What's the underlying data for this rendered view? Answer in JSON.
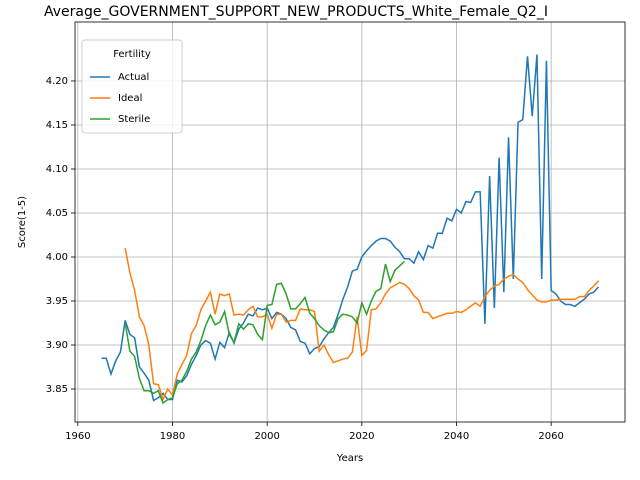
{
  "chart_data": {
    "type": "line",
    "title": "Average_GOVERNMENT_SUPPORT_NEW_PRODUCTS_White_Female_Q2_I",
    "x_label": "Years",
    "y_label": "Score(1-5)",
    "legend_title": "Fertility",
    "legend": "upper left",
    "grid": true,
    "xlim": [
      1959.4,
      2075.6
    ],
    "xticks": [
      1960,
      1980,
      2000,
      2020,
      2040,
      2060
    ],
    "ylim": [
      3.8125,
      4.267
    ],
    "yticks": [
      3.85,
      {
        "value": 3.9,
        "label": "3.90"
      },
      3.95,
      {
        "value": 4.0,
        "label": "4.00"
      },
      4.05,
      {
        "value": 4.1,
        "label": "4.10"
      },
      4.15,
      {
        "value": 4.2,
        "label": "4.20"
      }
    ],
    "x": [
      1965,
      1966,
      1967,
      1968,
      1969,
      1970,
      1971,
      1972,
      1973,
      1974,
      1975,
      1976,
      1977,
      1978,
      1979,
      1980,
      1981,
      1982,
      1983,
      1984,
      1985,
      1986,
      1987,
      1988,
      1989,
      1990,
      1991,
      1992,
      1993,
      1994,
      1995,
      1996,
      1997,
      1998,
      1999,
      2000,
      2001,
      2002,
      2003,
      2004,
      2005,
      2006,
      2007,
      2008,
      2009,
      2010,
      2011,
      2012,
      2013,
      2014,
      2015,
      2016,
      2017,
      2018,
      2019,
      2020,
      2021,
      2022,
      2023,
      2024,
      2025,
      2026,
      2027,
      2028,
      2029,
      2030,
      2031,
      2032,
      2033,
      2034,
      2035,
      2036,
      2037,
      2038,
      2039,
      2040,
      2041,
      2042,
      2043,
      2044,
      2045,
      2046,
      2047,
      2048,
      2049,
      2050,
      2051,
      2052,
      2053,
      2054,
      2055,
      2056,
      2057,
      2058,
      2059,
      2060,
      2061,
      2062,
      2063,
      2064,
      2065,
      2066,
      2067,
      2068,
      2069,
      2070
    ],
    "series": [
      {
        "name": "Actual",
        "color": "#1f77b4",
        "values": [
          3.885,
          3.885,
          3.867,
          3.882,
          3.892,
          3.928,
          3.912,
          3.908,
          3.875,
          3.868,
          3.86,
          3.837,
          3.84,
          3.845,
          3.838,
          3.838,
          3.86,
          3.858,
          3.865,
          3.878,
          3.888,
          3.9,
          3.905,
          3.902,
          3.884,
          3.903,
          3.897,
          3.914,
          3.902,
          3.918,
          3.925,
          3.935,
          3.933,
          3.942,
          3.94,
          3.942,
          3.93,
          3.937,
          3.935,
          3.93,
          3.92,
          3.917,
          3.904,
          3.902,
          3.89,
          3.896,
          3.898,
          3.907,
          3.914,
          3.92,
          3.935,
          3.952,
          3.966,
          3.984,
          3.986,
          4.0,
          4.007,
          4.013,
          4.018,
          4.021,
          4.021,
          4.018,
          4.011,
          4.006,
          3.998,
          3.998,
          3.993,
          4.006,
          3.997,
          4.013,
          4.01,
          4.027,
          4.027,
          4.044,
          4.041,
          4.054,
          4.05,
          4.063,
          4.062,
          4.074,
          4.074,
          3.924,
          4.092,
          3.942,
          4.113,
          3.96,
          4.136,
          3.975,
          4.153,
          4.156,
          4.228,
          4.16,
          4.23,
          3.975,
          4.223,
          3.962,
          3.958,
          3.95,
          3.946,
          3.946,
          3.944,
          3.948,
          3.952,
          3.958,
          3.96,
          3.966
        ]
      },
      {
        "name": "Ideal",
        "color": "#ff7f0e",
        "values": [
          null,
          null,
          null,
          null,
          null,
          4.01,
          3.982,
          3.962,
          3.932,
          3.922,
          3.9,
          3.856,
          3.855,
          3.838,
          3.85,
          3.843,
          3.867,
          3.878,
          3.888,
          3.913,
          3.922,
          3.94,
          3.95,
          3.96,
          3.935,
          3.958,
          3.956,
          3.958,
          3.934,
          3.935,
          3.934,
          3.94,
          3.944,
          3.932,
          3.932,
          3.935,
          3.919,
          3.935,
          3.935,
          3.926,
          3.928,
          3.928,
          3.941,
          3.94,
          3.94,
          3.938,
          3.893,
          3.9,
          3.889,
          3.88,
          3.882,
          3.884,
          3.885,
          3.892,
          3.932,
          3.888,
          3.894,
          3.94,
          3.941,
          3.948,
          3.958,
          3.965,
          3.968,
          3.971,
          3.969,
          3.964,
          3.956,
          3.951,
          3.937,
          3.937,
          3.93,
          3.932,
          3.934,
          3.936,
          3.936,
          3.938,
          3.937,
          3.94,
          3.944,
          3.948,
          3.944,
          3.955,
          3.962,
          3.967,
          3.969,
          3.975,
          3.978,
          3.98,
          3.975,
          3.971,
          3.963,
          3.957,
          3.951,
          3.949,
          3.949,
          3.951,
          3.951,
          3.952,
          3.952,
          3.952,
          3.952,
          3.955,
          3.955,
          3.962,
          3.967,
          3.973
        ]
      },
      {
        "name": "Sterile",
        "color": "#2ca02c",
        "values": [
          null,
          null,
          null,
          null,
          null,
          3.925,
          3.893,
          3.887,
          3.862,
          3.848,
          3.848,
          3.845,
          3.848,
          3.834,
          3.838,
          3.84,
          3.856,
          3.86,
          3.87,
          3.884,
          3.892,
          3.905,
          3.922,
          3.934,
          3.923,
          3.926,
          3.938,
          3.912,
          3.903,
          3.924,
          3.918,
          3.924,
          3.923,
          3.912,
          3.906,
          3.945,
          3.946,
          3.969,
          3.97,
          3.958,
          3.941,
          3.941,
          3.947,
          3.954,
          3.936,
          3.93,
          3.922,
          3.917,
          3.914,
          3.915,
          3.93,
          3.935,
          3.934,
          3.932,
          3.925,
          3.948,
          3.935,
          3.95,
          3.961,
          3.964,
          3.992,
          3.972,
          3.985,
          3.99,
          3.995,
          null,
          null,
          null,
          null,
          null,
          null,
          null,
          null,
          null,
          null,
          null,
          null,
          null,
          null,
          null,
          null,
          null,
          null,
          null,
          null,
          null,
          null,
          null,
          null,
          null,
          null,
          null,
          null,
          null,
          null,
          null,
          null,
          null,
          null,
          null,
          null,
          null,
          null,
          null,
          null,
          null
        ]
      }
    ]
  }
}
